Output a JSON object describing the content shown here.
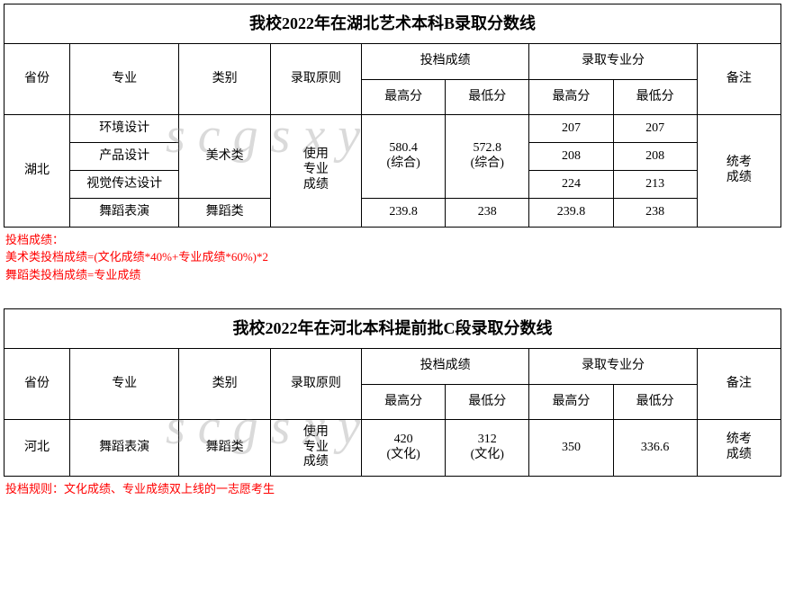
{
  "watermark_text": "scgsxy",
  "table1": {
    "title": "我校2022年在湖北艺术本科B录取分数线",
    "headers": {
      "province": "省份",
      "major": "专业",
      "category": "类别",
      "rule": "录取原则",
      "filing_group": "投档成绩",
      "pro_group": "录取专业分",
      "remark": "备注",
      "max": "最高分",
      "min": "最低分"
    },
    "province": "湖北",
    "rule_text": "使用\n专业\n成绩",
    "remark_text": "统考\n成绩",
    "art_category": "美术类",
    "filing_art_max": "580.4\n(综合)",
    "filing_art_min": "572.8\n(综合)",
    "rows": [
      {
        "major": "环境设计",
        "pro_max": "207",
        "pro_min": "207"
      },
      {
        "major": "产品设计",
        "pro_max": "208",
        "pro_min": "208"
      },
      {
        "major": "视觉传达设计",
        "pro_max": "224",
        "pro_min": "213"
      }
    ],
    "dance_row": {
      "major": "舞蹈表演",
      "category": "舞蹈类",
      "f_max": "239.8",
      "f_min": "238",
      "p_max": "239.8",
      "p_min": "238"
    },
    "note_lines": [
      "投档成绩：",
      "美术类投档成绩=(文化成绩*40%+专业成绩*60%)*2",
      "舞蹈类投档成绩=专业成绩"
    ]
  },
  "table2": {
    "title": "我校2022年在河北本科提前批C段录取分数线",
    "headers": {
      "province": "省份",
      "major": "专业",
      "category": "类别",
      "rule": "录取原则",
      "filing_group": "投档成绩",
      "pro_group": "录取专业分",
      "remark": "备注",
      "max": "最高分",
      "min": "最低分"
    },
    "row": {
      "province": "河北",
      "major": "舞蹈表演",
      "category": "舞蹈类",
      "rule": "使用\n专业\n成绩",
      "f_max": "420\n(文化)",
      "f_min": "312\n(文化)",
      "p_max": "350",
      "p_min": "336.6",
      "remark": "统考\n成绩"
    },
    "note": "投档规则：文化成绩、专业成绩双上线的一志愿考生"
  },
  "col_widths": [
    "72",
    "120",
    "100",
    "100",
    "92",
    "92",
    "92",
    "92",
    "92"
  ]
}
